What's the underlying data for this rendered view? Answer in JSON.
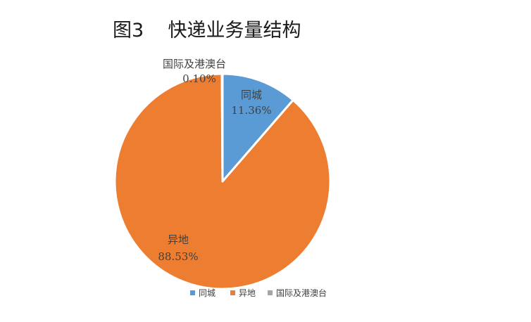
{
  "chart_data": {
    "type": "pie",
    "title": "图3    快递业务量结构",
    "slices": [
      {
        "name": "同城",
        "value": 11.36,
        "label": "11.36%",
        "color": "#5b9bd5"
      },
      {
        "name": "异地",
        "value": 88.53,
        "label": "88.53%",
        "color": "#ed7d31"
      },
      {
        "name": "国际及港澳台",
        "value": 0.1,
        "label": "0.10%",
        "color": "#a5a5a5"
      }
    ],
    "legend_position": "bottom"
  }
}
